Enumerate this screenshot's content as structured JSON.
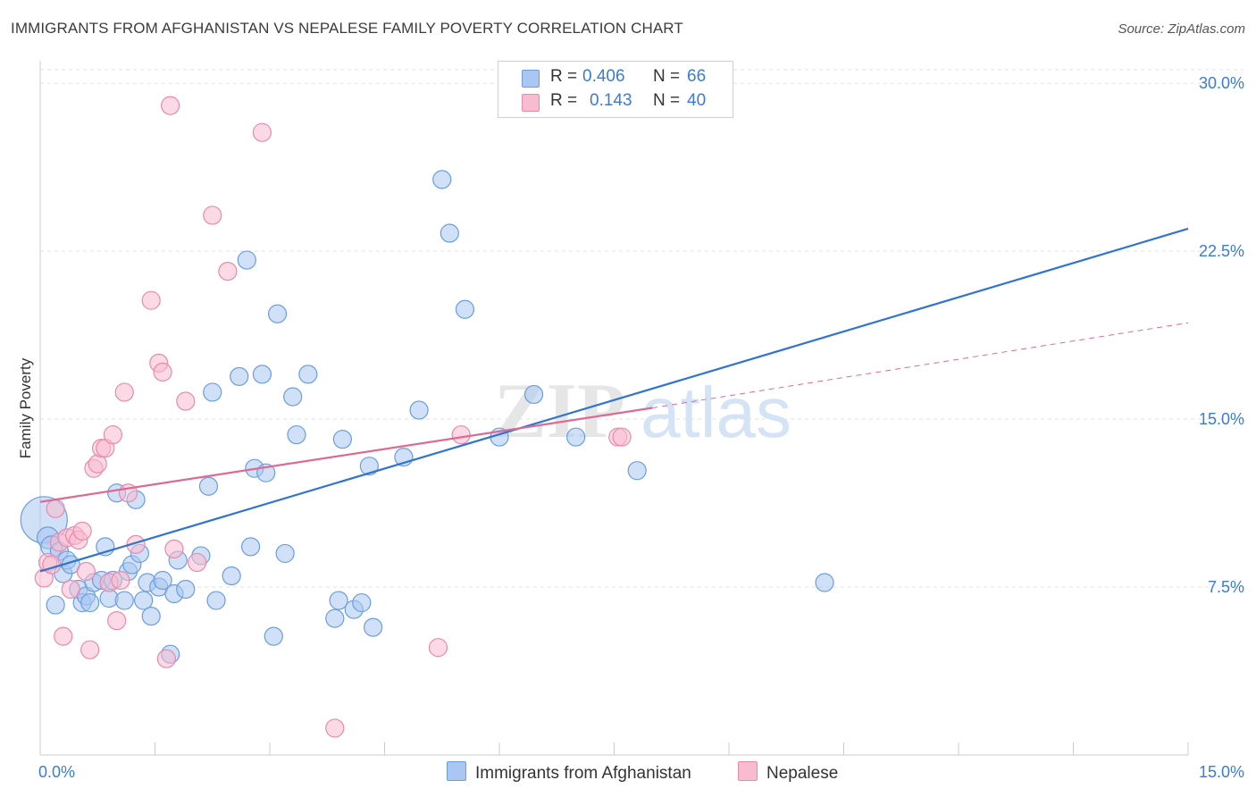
{
  "header": {
    "title": "IMMIGRANTS FROM AFGHANISTAN VS NEPALESE FAMILY POVERTY CORRELATION CHART",
    "source": "Source: ZipAtlas.com"
  },
  "legend": {
    "r_label": "R =",
    "n_label": "N =",
    "rows": [
      {
        "r": "0.406",
        "n": "66",
        "color": "#a9c7f0",
        "border": "#6a9ddf"
      },
      {
        "r": "0.143",
        "n": "40",
        "color": "#f7bcd0",
        "border": "#e88aab"
      }
    ]
  },
  "bottom_legend": {
    "series_a": "Immigrants from Afghanistan",
    "series_b": "Nepalese"
  },
  "watermark": {
    "zip": "ZIP",
    "atlas": "atlas"
  },
  "chart_data": {
    "type": "scatter",
    "title": "IMMIGRANTS FROM AFGHANISTAN VS NEPALESE FAMILY POVERTY CORRELATION CHART",
    "xlabel": "",
    "ylabel": "Family Poverty",
    "xlim": [
      0,
      15
    ],
    "ylim": [
      0,
      31
    ],
    "x_tick_labels": [
      "0.0%",
      "15.0%"
    ],
    "y_ticks": [
      7.5,
      15.0,
      22.5,
      30.0
    ],
    "y_tick_labels": [
      "7.5%",
      "15.0%",
      "22.5%",
      "30.0%"
    ],
    "grid": true,
    "series": [
      {
        "name": "Immigrants from Afghanistan",
        "color": "#a9c7f0",
        "edge": "#6a9ddf",
        "line_color": "#2f75d0",
        "trend": {
          "x0": 0.0,
          "y0": 8.2,
          "x1": 15.0,
          "y1": 23.5
        },
        "points": [
          [
            0.05,
            10.5,
            26
          ],
          [
            0.1,
            9.7,
            12
          ],
          [
            0.15,
            9.3,
            12
          ],
          [
            0.2,
            6.7,
            10
          ],
          [
            0.25,
            9.1,
            10
          ],
          [
            0.3,
            8.1,
            10
          ],
          [
            0.35,
            8.7,
            10
          ],
          [
            0.4,
            8.5,
            10
          ],
          [
            0.5,
            7.4,
            10
          ],
          [
            0.55,
            6.8,
            10
          ],
          [
            0.6,
            7.1,
            10
          ],
          [
            0.65,
            6.8,
            10
          ],
          [
            0.7,
            7.7,
            10
          ],
          [
            0.8,
            7.8,
            10
          ],
          [
            0.85,
            9.3,
            10
          ],
          [
            0.9,
            7.0,
            10
          ],
          [
            0.95,
            7.8,
            10
          ],
          [
            1.0,
            11.7,
            10
          ],
          [
            1.1,
            6.9,
            10
          ],
          [
            1.15,
            8.2,
            10
          ],
          [
            1.2,
            8.5,
            10
          ],
          [
            1.25,
            11.4,
            10
          ],
          [
            1.3,
            9.0,
            10
          ],
          [
            1.35,
            6.9,
            10
          ],
          [
            1.4,
            7.7,
            10
          ],
          [
            1.45,
            6.2,
            10
          ],
          [
            1.55,
            7.5,
            10
          ],
          [
            1.6,
            7.8,
            10
          ],
          [
            1.7,
            4.5,
            10
          ],
          [
            1.75,
            7.2,
            10
          ],
          [
            1.8,
            8.7,
            10
          ],
          [
            1.9,
            7.4,
            10
          ],
          [
            2.1,
            8.9,
            10
          ],
          [
            2.2,
            12.0,
            10
          ],
          [
            2.25,
            16.2,
            10
          ],
          [
            2.3,
            6.9,
            10
          ],
          [
            2.5,
            8.0,
            10
          ],
          [
            2.6,
            16.9,
            10
          ],
          [
            2.7,
            22.1,
            10
          ],
          [
            2.75,
            9.3,
            10
          ],
          [
            2.8,
            12.8,
            10
          ],
          [
            2.9,
            17.0,
            10
          ],
          [
            2.95,
            12.6,
            10
          ],
          [
            3.05,
            5.3,
            10
          ],
          [
            3.1,
            19.7,
            10
          ],
          [
            3.2,
            9.0,
            10
          ],
          [
            3.3,
            16.0,
            10
          ],
          [
            3.35,
            14.3,
            10
          ],
          [
            3.5,
            17.0,
            10
          ],
          [
            3.85,
            6.1,
            10
          ],
          [
            3.9,
            6.9,
            10
          ],
          [
            3.95,
            14.1,
            10
          ],
          [
            4.1,
            6.5,
            10
          ],
          [
            4.2,
            6.8,
            10
          ],
          [
            4.3,
            12.9,
            10
          ],
          [
            4.35,
            5.7,
            10
          ],
          [
            4.75,
            13.3,
            10
          ],
          [
            4.95,
            15.4,
            10
          ],
          [
            5.25,
            25.7,
            10
          ],
          [
            5.35,
            23.3,
            10
          ],
          [
            5.55,
            19.9,
            10
          ],
          [
            6.0,
            14.2,
            10
          ],
          [
            6.45,
            16.1,
            10
          ],
          [
            7.0,
            14.2,
            10
          ],
          [
            7.8,
            12.7,
            10
          ],
          [
            10.25,
            7.7,
            10
          ]
        ]
      },
      {
        "name": "Nepalese",
        "color": "#f7bcd0",
        "edge": "#e88aab",
        "line_color": "#dc6a93",
        "trend": {
          "x0": 0.0,
          "y0": 11.3,
          "x1": 8.0,
          "y1": 15.5
        },
        "trend_extension": {
          "x0": 8.0,
          "y0": 15.5,
          "x1": 15.0,
          "y1": 19.3
        },
        "points": [
          [
            0.05,
            7.9,
            10
          ],
          [
            0.1,
            8.6,
            10
          ],
          [
            0.15,
            8.5,
            10
          ],
          [
            0.2,
            11.0,
            10
          ],
          [
            0.25,
            9.5,
            10
          ],
          [
            0.3,
            5.3,
            10
          ],
          [
            0.35,
            9.7,
            10
          ],
          [
            0.4,
            7.4,
            10
          ],
          [
            0.45,
            9.8,
            10
          ],
          [
            0.5,
            9.6,
            10
          ],
          [
            0.55,
            10.0,
            10
          ],
          [
            0.6,
            8.2,
            10
          ],
          [
            0.65,
            4.7,
            10
          ],
          [
            0.7,
            12.8,
            10
          ],
          [
            0.75,
            13.0,
            10
          ],
          [
            0.8,
            13.7,
            10
          ],
          [
            0.85,
            13.7,
            10
          ],
          [
            0.9,
            7.7,
            10
          ],
          [
            0.95,
            14.3,
            10
          ],
          [
            1.0,
            6.0,
            10
          ],
          [
            1.05,
            7.8,
            10
          ],
          [
            1.1,
            16.2,
            10
          ],
          [
            1.15,
            11.7,
            10
          ],
          [
            1.25,
            9.4,
            10
          ],
          [
            1.45,
            20.3,
            10
          ],
          [
            1.55,
            17.5,
            10
          ],
          [
            1.6,
            17.1,
            10
          ],
          [
            1.65,
            4.3,
            10
          ],
          [
            1.7,
            29.0,
            10
          ],
          [
            1.75,
            9.2,
            10
          ],
          [
            1.9,
            15.8,
            10
          ],
          [
            2.05,
            8.6,
            10
          ],
          [
            2.25,
            24.1,
            10
          ],
          [
            2.45,
            21.6,
            10
          ],
          [
            2.9,
            27.8,
            10
          ],
          [
            3.85,
            1.2,
            10
          ],
          [
            5.2,
            4.8,
            10
          ],
          [
            5.5,
            14.3,
            10
          ],
          [
            7.55,
            14.2,
            10
          ],
          [
            7.6,
            14.2,
            10
          ]
        ]
      }
    ]
  }
}
